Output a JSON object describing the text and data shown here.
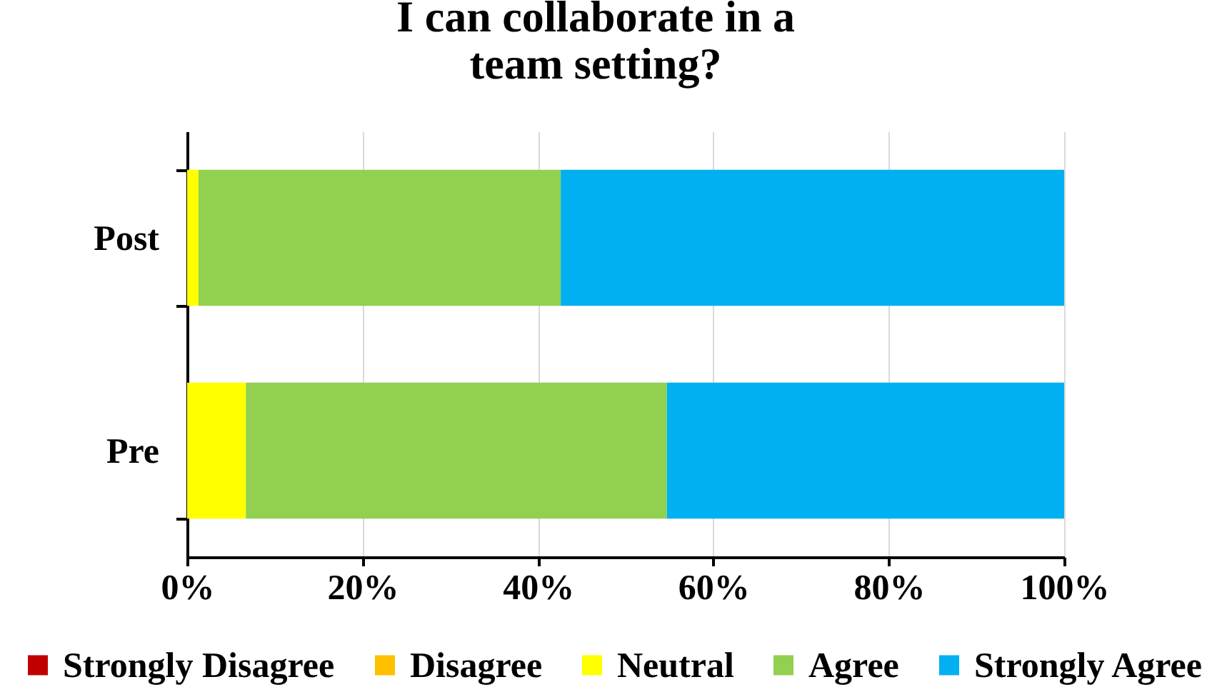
{
  "chart_data": {
    "type": "bar",
    "orientation": "horizontal",
    "stacked": true,
    "title": "I can collaborate in a\nteam setting?",
    "categories": [
      "Post",
      "Pre"
    ],
    "series": [
      {
        "name": "Strongly Disagree",
        "color": "#c00000",
        "values": [
          0,
          0
        ]
      },
      {
        "name": "Disagree",
        "color": "#ffc000",
        "values": [
          0,
          0
        ]
      },
      {
        "name": "Neutral",
        "color": "#ffff00",
        "values": [
          1.3,
          6.7
        ]
      },
      {
        "name": "Agree",
        "color": "#92d050",
        "values": [
          41.3,
          48.0
        ]
      },
      {
        "name": "Strongly Agree",
        "color": "#00b0f0",
        "values": [
          57.4,
          45.3
        ]
      }
    ],
    "xlim": [
      0,
      100
    ],
    "xticks": [
      {
        "value": 0,
        "label": "0%"
      },
      {
        "value": 20,
        "label": "20%"
      },
      {
        "value": 40,
        "label": "40%"
      },
      {
        "value": 60,
        "label": "60%"
      },
      {
        "value": 80,
        "label": "80%"
      },
      {
        "value": 100,
        "label": "100%"
      }
    ],
    "grid": "x",
    "legend": "bottom"
  }
}
